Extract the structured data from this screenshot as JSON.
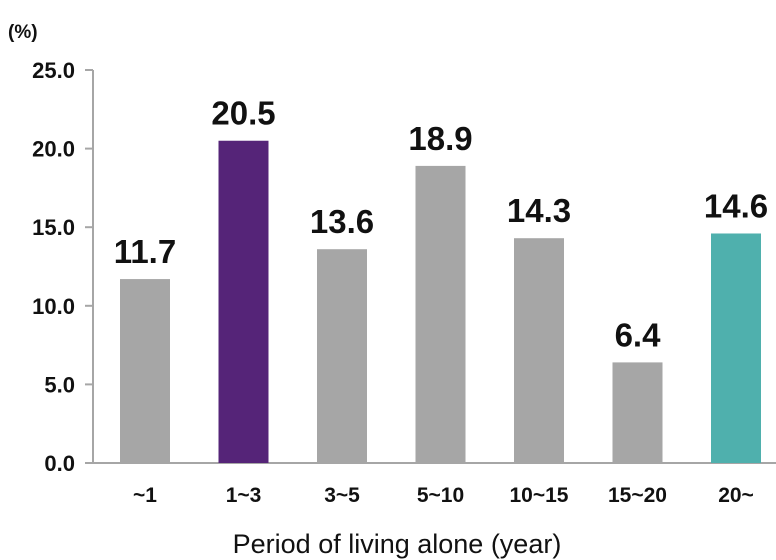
{
  "chart_data": {
    "type": "bar",
    "unit_label": "(%)",
    "xlabel": "Period of living alone (year)",
    "ylabel": "",
    "ylim": [
      0,
      25
    ],
    "yticks": [
      "0.0",
      "5.0",
      "10.0",
      "15.0",
      "20.0",
      "25.0"
    ],
    "ytick_values": [
      0,
      5,
      10,
      15,
      20,
      25
    ],
    "categories": [
      "~1",
      "1~3",
      "3~5",
      "5~10",
      "10~15",
      "15~20",
      "20~"
    ],
    "values": [
      11.7,
      20.5,
      13.6,
      18.9,
      14.3,
      6.4,
      14.6
    ],
    "value_labels": [
      "11.7",
      "20.5",
      "13.6",
      "18.9",
      "14.3",
      "6.4",
      "14.6"
    ],
    "colors": [
      "#a6a6a6",
      "#552478",
      "#a6a6a6",
      "#a6a6a6",
      "#a6a6a6",
      "#a6a6a6",
      "#4fb0ad"
    ],
    "axis_color": "#a6a6a6",
    "grid": false,
    "legend": "none"
  }
}
